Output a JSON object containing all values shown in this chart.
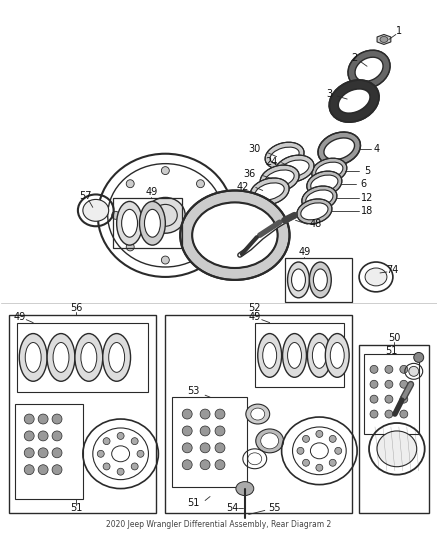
{
  "title": "2020 Jeep Wrangler Differential Assembly, Rear Diagram 2",
  "bg_color": "#ffffff",
  "line_color": "#2a2a2a",
  "font_size": 7,
  "fig_width": 4.38,
  "fig_height": 5.33,
  "dpi": 100
}
